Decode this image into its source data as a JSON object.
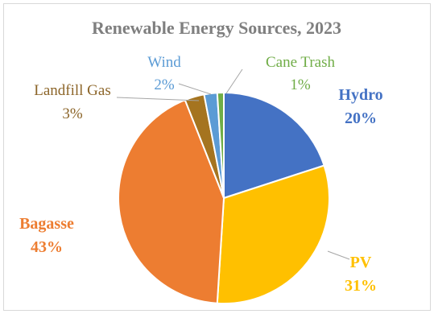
{
  "chart_data": {
    "type": "pie",
    "title": "Renewable Energy Sources, 2023",
    "start_angle_deg": 0,
    "direction": "clockwise",
    "slices": [
      {
        "name": "Hydro",
        "value": 20,
        "label_value": "20%",
        "color": "#4472c4",
        "label_color": "#4472c4",
        "label_bold": true
      },
      {
        "name": "PV",
        "value": 31,
        "label_value": "31%",
        "color": "#ffc000",
        "label_color": "#ffc000",
        "label_bold": true
      },
      {
        "name": "Bagasse",
        "value": 43,
        "label_value": "43%",
        "color": "#ed7d31",
        "label_color": "#ed7d31",
        "label_bold": true
      },
      {
        "name": "Landfill Gas",
        "value": 3,
        "label_value": "3%",
        "color": "#a5741f",
        "label_color": "#8c6529",
        "label_bold": false
      },
      {
        "name": "Wind",
        "value": 2,
        "label_value": "2%",
        "color": "#5b9bd5",
        "label_color": "#5b9bd5",
        "label_bold": false
      },
      {
        "name": "Cane Trash",
        "value": 1,
        "label_value": "1%",
        "color": "#70ad47",
        "label_color": "#70ad47",
        "label_bold": false
      }
    ],
    "leader_line_color": "#a6a6a6"
  }
}
